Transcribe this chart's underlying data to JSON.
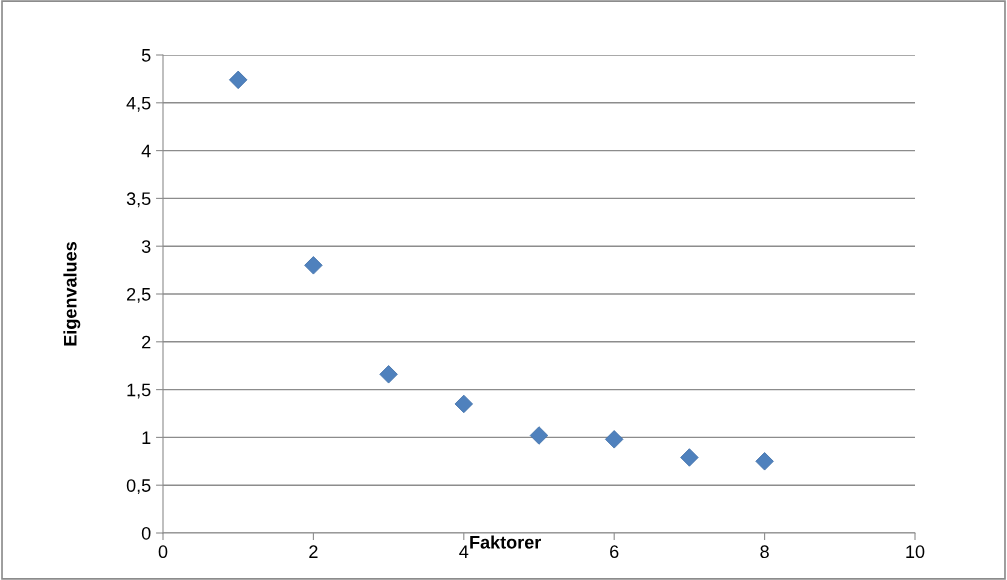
{
  "chart_data": {
    "type": "scatter",
    "xlabel": "Faktorer",
    "ylabel": "Eigenvalues",
    "x": [
      1,
      2,
      3,
      4,
      5,
      6,
      7,
      8
    ],
    "values": [
      4.74,
      2.8,
      1.66,
      1.35,
      1.02,
      0.98,
      0.79,
      0.75
    ],
    "color": "#4f81bd",
    "marker": "diamond",
    "xlim": [
      0,
      10
    ],
    "xticks": [
      0,
      2,
      4,
      6,
      8,
      10
    ],
    "ylim": [
      0,
      5
    ],
    "yticks": [
      0,
      {
        "value": 0.5,
        "label": "0,5"
      },
      1,
      {
        "value": 1.5,
        "label": "1,5"
      },
      2,
      {
        "value": 2.5,
        "label": "2,5"
      },
      3,
      {
        "value": 3.5,
        "label": "3,5"
      },
      4,
      {
        "value": 4.5,
        "label": "4,5"
      },
      5
    ],
    "grid": "y",
    "legend": false
  }
}
